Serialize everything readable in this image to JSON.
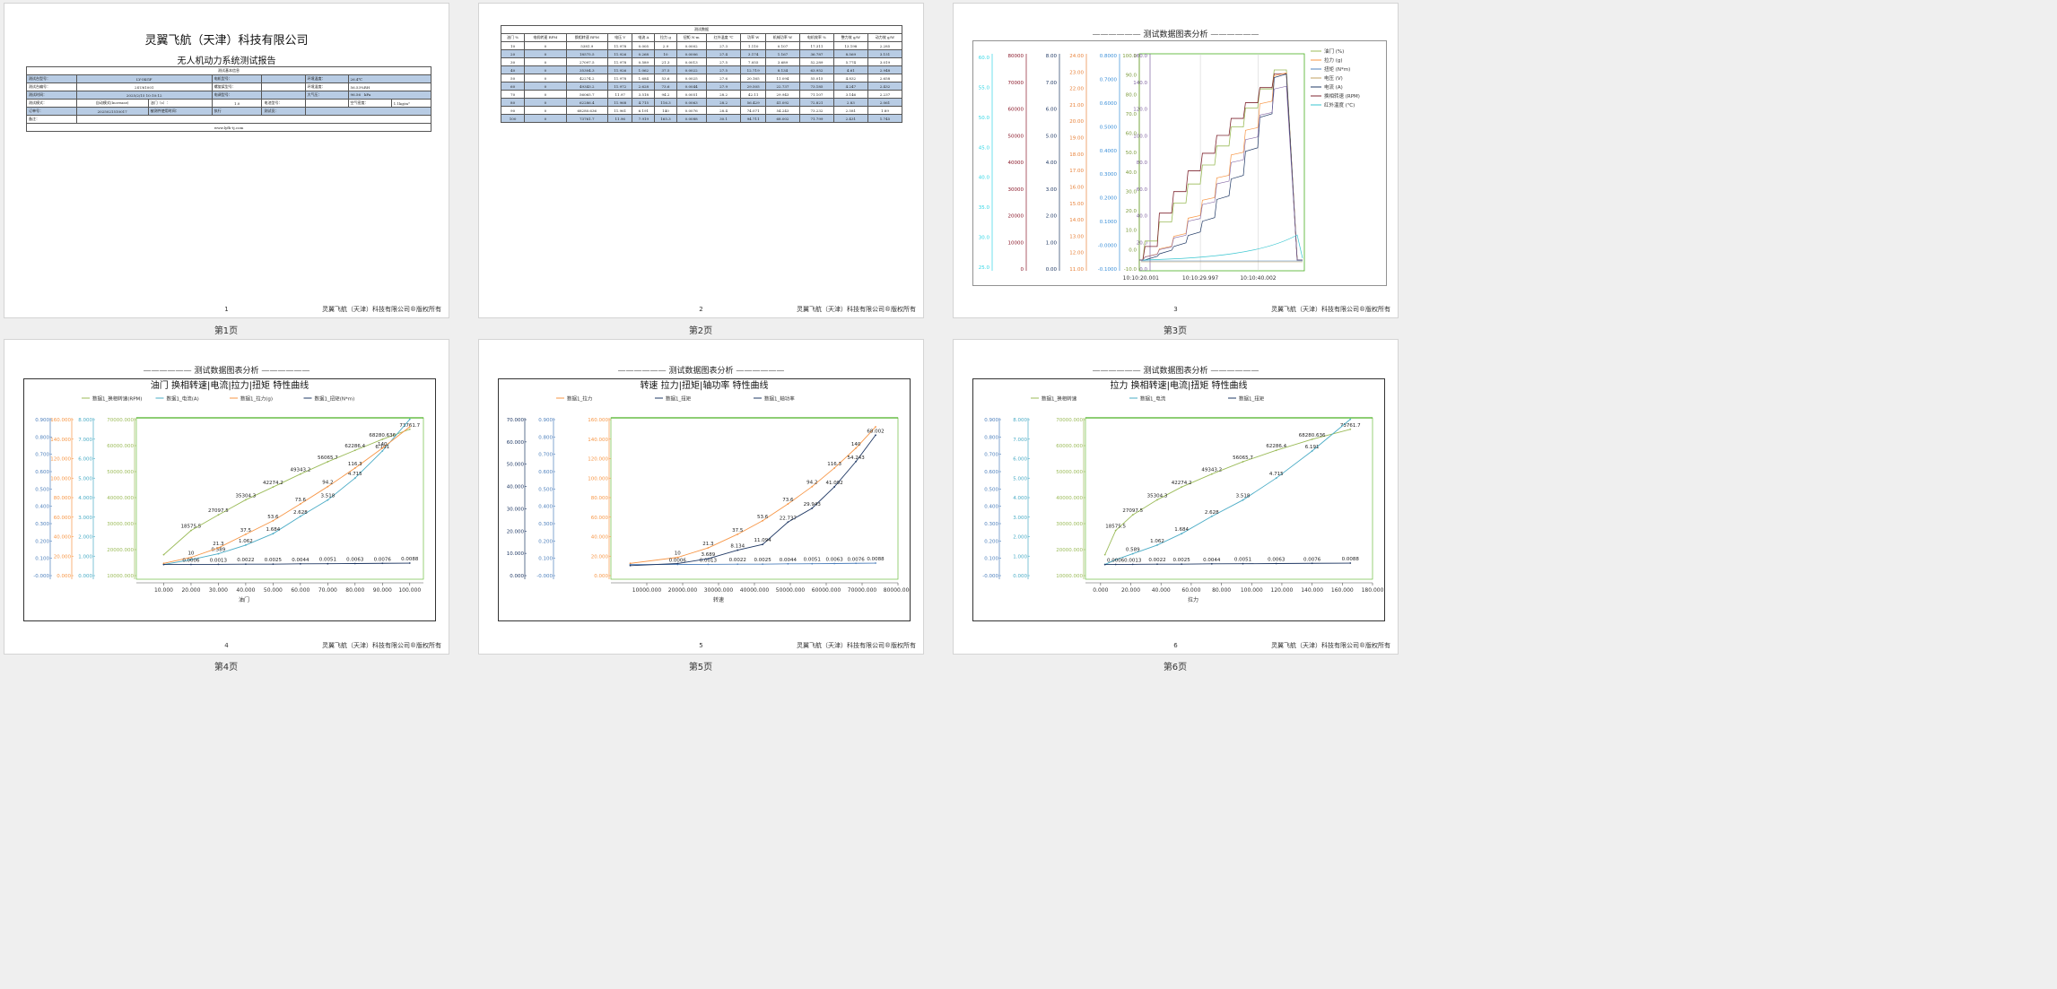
{
  "footer_text": "灵翼飞航（天津）科技有限公司®版权所有",
  "page_labels": [
    "第1页",
    "第2页",
    "第3页",
    "第4页",
    "第5页",
    "第6页"
  ],
  "page_numbers": [
    "1",
    "2",
    "3",
    "4",
    "5",
    "6"
  ],
  "report": {
    "company": "灵翼飞航（天津）科技有限公司",
    "title": "无人机动力系统测试报告",
    "section": "测试基本信息",
    "rows": [
      [
        "测试台型号：",
        "LY-5KGF",
        "电机型号：",
        "",
        "环境温度：",
        "26.4℃"
      ],
      [
        "测试台编号：",
        "2SU61001",
        "螺旋桨型号：",
        "",
        "环境湿度：",
        "56.53%RH"
      ],
      [
        "测试时间：",
        "2025/2/15 10:10:12",
        "电调型号：",
        "",
        "大气压：",
        "96.56　kPa"
      ],
      [
        "测试模式：",
        "自动模式(Increase)",
        "油门（s）：",
        "1.0",
        "电池型号：",
        "",
        "空气密度：",
        "1.1kg/m³"
      ],
      [
        "订单号：",
        "2025021510017",
        "被测件使用时间：",
        "执行",
        "测试员：",
        ""
      ],
      [
        "备注：",
        ""
      ]
    ],
    "website": "www.lyfh-tj.com"
  },
  "table": {
    "section": "测试数据",
    "headers": [
      "油门 %",
      "电机转速 RPM",
      "换相转速 RPM",
      "电压 V",
      "电流 A",
      "拉力 g",
      "扭矩 N·m",
      "红外温度 ℃",
      "功率 W",
      "机械功率 W",
      "电机效率 %",
      "整力效 g/W",
      "动力效 g/W"
    ],
    "rows": [
      [
        "10",
        "0",
        "5381.9",
        "11.978",
        "0.005",
        "2.9",
        "0.0002",
        "27.3",
        "1.110",
        "0.107",
        "17.311",
        "13.198",
        "2.285"
      ],
      [
        "20",
        "0",
        "18575.5",
        "11.926",
        "0.268",
        "10",
        "0.0006",
        "27.4",
        "3.174",
        "1.167",
        "36.787",
        "8.569",
        "3.151"
      ],
      [
        "30",
        "0",
        "27097.5",
        "11.978",
        "0.589",
        "21.3",
        "0.0013",
        "27.5",
        "7.055",
        "3.689",
        "52.289",
        "5.774",
        "3.019"
      ],
      [
        "40",
        "0",
        "35304.3",
        "11.926",
        "1.062",
        "37.5",
        "0.0022",
        "27.5",
        "12.719",
        "8.134",
        "63.952",
        "4.61",
        "2.948"
      ],
      [
        "50",
        "0",
        "42274.2",
        "11.978",
        "1.684",
        "53.6",
        "0.0025",
        "27.6",
        "20.165",
        "11.094",
        "55.015",
        "4.832",
        "2.658"
      ],
      [
        "60",
        "0",
        "49343.2",
        "11.972",
        "2.628",
        "73.6",
        "0.0044",
        "27.9",
        "29.505",
        "22.737",
        "73.185",
        "4.247",
        "2.432"
      ],
      [
        "70",
        "0",
        "56065.7",
        "11.97",
        "3.518",
        "94.2",
        "0.0051",
        "28.2",
        "42.11",
        "29.943",
        "71.107",
        "3.146",
        "2.237"
      ],
      [
        "80",
        "0",
        "62286.4",
        "11.968",
        "4.715",
        "116.3",
        "0.0063",
        "28.2",
        "56.429",
        "41.092",
        "72.821",
        "2.83",
        "2.061"
      ],
      [
        "90",
        "0",
        "68280.636",
        "11.961",
        "6.191",
        "140",
        "0.0076",
        "28.4",
        "74.071",
        "54.243",
        "73.232",
        "2.581",
        "1.89"
      ],
      [
        "100",
        "0",
        "73761.7",
        "11.96",
        "7.919",
        "165.3",
        "0.0088",
        "30.1",
        "94.711",
        "68.002",
        "71.799",
        "2.431",
        "1.745"
      ]
    ]
  },
  "chart3": {
    "title": "测试数据图表分析",
    "legend": [
      {
        "name": "油门 (%)",
        "color": "#9bbb59"
      },
      {
        "name": "拉力 (g)",
        "color": "#f79646"
      },
      {
        "name": "扭矩 (N*m)",
        "color": "#4f81bd"
      },
      {
        "name": "电压 (V)",
        "color": "#c0a060"
      },
      {
        "name": "电流 (A)",
        "color": "#1f3864"
      },
      {
        "name": "换相转速 (RPM)",
        "color": "#7f2630"
      },
      {
        "name": "红外温度 (℃)",
        "color": "#39c6d0"
      }
    ],
    "x_ticks": [
      "10:10:20.001",
      "10:10:29.997",
      "10:10:40.002"
    ],
    "axes": [
      {
        "color": "#33d6e6",
        "ticks": [
          "60.0",
          "55.0",
          "50.0",
          "45.0",
          "40.0",
          "35.0",
          "30.0",
          "25.0"
        ]
      },
      {
        "color": "#8b1a2b",
        "ticks": [
          "80000",
          "70000",
          "60000",
          "50000",
          "40000",
          "30000",
          "20000",
          "10000",
          "0"
        ]
      },
      {
        "color": "#1f3864",
        "ticks": [
          "8.00",
          "7.00",
          "6.00",
          "5.00",
          "4.00",
          "3.00",
          "2.00",
          "1.00",
          "0.00"
        ]
      },
      {
        "color": "#e8823a",
        "ticks": [
          "24.00",
          "23.00",
          "22.00",
          "21.00",
          "20.00",
          "19.00",
          "18.00",
          "17.00",
          "16.00",
          "15.00",
          "14.00",
          "13.00",
          "12.00",
          "11.00"
        ]
      },
      {
        "color": "#3b8fd8",
        "ticks": [
          "0.8000",
          "0.7000",
          "0.6000",
          "0.5000",
          "0.4000",
          "0.3000",
          "0.2000",
          "0.1000",
          "-0.0000",
          "-0.1000"
        ]
      },
      {
        "color": "#8064a2",
        "ticks": [
          "160.0",
          "140.0",
          "120.0",
          "100.0",
          "80.0",
          "60.0",
          "40.0",
          "20.0",
          "0.0"
        ]
      },
      {
        "color": "#7a9a3a",
        "ticks": [
          "100.0",
          "90.0",
          "80.0",
          "70.0",
          "60.0",
          "50.0",
          "40.0",
          "30.0",
          "20.0",
          "10.0",
          "0.0",
          "-10.0"
        ]
      }
    ]
  },
  "chart4": {
    "header": "测试数据图表分析",
    "title": "油门 换相转速|电流|拉力|扭矩 特性曲线",
    "legend": [
      {
        "name": "数据1_换相转速(RPM)",
        "color": "#9bbb59"
      },
      {
        "name": "数据1_电流(A)",
        "color": "#4bacc6"
      },
      {
        "name": "数据1_拉力(g)",
        "color": "#f79646"
      },
      {
        "name": "数据1_扭矩(N*m)",
        "color": "#1f3864"
      }
    ],
    "xlabel": "油门",
    "x_ticks": [
      "10.000",
      "20.000",
      "30.000",
      "40.000",
      "50.000",
      "60.000",
      "70.000",
      "80.000",
      "90.000",
      "100.000"
    ],
    "axes": [
      {
        "color": "#4f81bd",
        "ticks": [
          "0.900",
          "0.800",
          "0.700",
          "0.600",
          "0.500",
          "0.400",
          "0.300",
          "0.200",
          "0.100",
          "-0.000"
        ]
      },
      {
        "color": "#f79646",
        "ticks": [
          "160.000",
          "140.000",
          "120.000",
          "100.000",
          "80.000",
          "60.000",
          "40.000",
          "20.000",
          "0.000"
        ]
      },
      {
        "color": "#4bacc6",
        "ticks": [
          "8.000",
          "7.000",
          "6.000",
          "5.000",
          "4.000",
          "3.000",
          "2.000",
          "1.000",
          "0.000"
        ]
      },
      {
        "color": "#9bbb59",
        "ticks": [
          "70000.000",
          "60000.000",
          "50000.000",
          "40000.000",
          "30000.000",
          "20000.000",
          "10000.000"
        ]
      }
    ]
  },
  "chart5": {
    "header": "测试数据图表分析",
    "title": "转速 拉力|扭矩|轴功率 特性曲线",
    "legend": [
      {
        "name": "数据1_拉力",
        "color": "#f79646"
      },
      {
        "name": "数据1_扭矩",
        "color": "#1f3864"
      },
      {
        "name": "数据1_轴功率",
        "color": "#1f3864"
      }
    ],
    "xlabel": "转速",
    "x_ticks": [
      "10000.000",
      "20000.000",
      "30000.000",
      "40000.000",
      "50000.000",
      "60000.000",
      "70000.000",
      "80000.000"
    ],
    "axes": [
      {
        "color": "#1f3864",
        "ticks": [
          "70.000",
          "60.000",
          "50.000",
          "40.000",
          "30.000",
          "20.000",
          "10.000",
          "0.000"
        ]
      },
      {
        "color": "#4f81bd",
        "ticks": [
          "0.900",
          "0.800",
          "0.700",
          "0.600",
          "0.500",
          "0.400",
          "0.300",
          "0.200",
          "0.100",
          "-0.000"
        ]
      },
      {
        "color": "#f79646",
        "ticks": [
          "160.000",
          "140.000",
          "120.000",
          "100.000",
          "80.000",
          "60.000",
          "40.000",
          "20.000",
          "0.000"
        ]
      }
    ]
  },
  "chart6": {
    "header": "测试数据图表分析",
    "title": "拉力 换相转速|电流|扭矩 特性曲线",
    "legend": [
      {
        "name": "数据1_换相转速",
        "color": "#9bbb59"
      },
      {
        "name": "数据1_电流",
        "color": "#4bacc6"
      },
      {
        "name": "数据1_扭矩",
        "color": "#1f3864"
      }
    ],
    "xlabel": "拉力",
    "x_ticks": [
      "0.000",
      "20.000",
      "40.000",
      "60.000",
      "80.000",
      "100.000",
      "120.000",
      "140.000",
      "160.000",
      "180.000"
    ],
    "axes": [
      {
        "color": "#4f81bd",
        "ticks": [
          "0.900",
          "0.800",
          "0.700",
          "0.600",
          "0.500",
          "0.400",
          "0.300",
          "0.200",
          "0.100",
          "-0.000"
        ]
      },
      {
        "color": "#4bacc6",
        "ticks": [
          "8.000",
          "7.000",
          "6.000",
          "5.000",
          "4.000",
          "3.000",
          "2.000",
          "1.000",
          "0.000"
        ]
      },
      {
        "color": "#9bbb59",
        "ticks": [
          "70000.000",
          "60000.000",
          "50000.000",
          "40000.000",
          "30000.000",
          "20000.000",
          "10000.000"
        ]
      }
    ]
  },
  "chart_data": [
    {
      "type": "line",
      "title": "油门 换相转速|电流|拉力|扭矩 特性曲线",
      "xlabel": "油门",
      "xlim": [
        0,
        105
      ],
      "x": [
        10,
        20,
        30,
        40,
        50,
        60,
        70,
        80,
        90,
        100
      ],
      "series": [
        {
          "name": "数据1_换相转速(RPM)",
          "color": "#9bbb59",
          "ylim": [
            -8000,
            80000
          ],
          "values": [
            5381.9,
            18575.5,
            27097.5,
            35304.3,
            42274.2,
            49343.2,
            56065.7,
            62286.4,
            68280.636,
            73761.7
          ],
          "labels": [
            "",
            "18575.5",
            "27097.5",
            "35304.3",
            "42274.2",
            "49343.2",
            "56065.7",
            "62286.4",
            "68280.636",
            "73761.7"
          ]
        },
        {
          "name": "数据1_电流(A)",
          "color": "#4bacc6",
          "ylim": [
            -0.8,
            8.0
          ],
          "values": [
            0.005,
            0.268,
            0.589,
            1.062,
            1.684,
            2.628,
            3.518,
            4.715,
            6.191,
            7.919
          ],
          "labels": [
            "",
            "",
            "0.589",
            "1.062",
            "1.684",
            "2.628",
            "3.518",
            "4.715",
            "6.191",
            ""
          ]
        },
        {
          "name": "数据1_拉力(g)",
          "color": "#f79646",
          "ylim": [
            -16,
            176
          ],
          "values": [
            2.9,
            10,
            21.3,
            37.5,
            53.6,
            73.6,
            94.2,
            116.3,
            140,
            165.3
          ],
          "labels": [
            "",
            "10",
            "21.3",
            "37.5",
            "53.6",
            "73.6",
            "94.2",
            "116.3",
            "140",
            ""
          ]
        },
        {
          "name": "数据1_扭矩(N*m)",
          "color": "#1f3864",
          "ylim": [
            -0.09,
            0.9
          ],
          "values": [
            0.0002,
            0.0006,
            0.0013,
            0.0022,
            0.0025,
            0.0044,
            0.0051,
            0.0063,
            0.0076,
            0.0088
          ],
          "labels": [
            "",
            "0.0006",
            "0.0013",
            "0.0022",
            "0.0025",
            "0.0044",
            "0.0051",
            "0.0063",
            "0.0076",
            "0.0088"
          ]
        }
      ]
    },
    {
      "type": "line",
      "title": "转速 拉力|扭矩|轴功率 特性曲线",
      "xlabel": "转速",
      "xlim": [
        0,
        80000
      ],
      "x": [
        5381.9,
        18575.5,
        27097.5,
        35304.3,
        42274.2,
        49343.2,
        56065.7,
        62286.4,
        68280.636,
        73761.7
      ],
      "series": [
        {
          "name": "数据1_拉力",
          "color": "#f79646",
          "ylim": [
            -16,
            176
          ],
          "values": [
            2.9,
            10,
            21.3,
            37.5,
            53.6,
            73.6,
            94.2,
            116.3,
            140,
            165.3
          ],
          "labels": [
            "",
            "10",
            "21.3",
            "37.5",
            "53.6",
            "73.6",
            "94.2",
            "116.3",
            "140",
            ""
          ]
        },
        {
          "name": "数据1_扭矩",
          "color": "#4f81bd",
          "ylim": [
            -0.09,
            0.9
          ],
          "values": [
            0.0002,
            0.0006,
            0.0013,
            0.0022,
            0.0025,
            0.0044,
            0.0051,
            0.0063,
            0.0076,
            0.0088
          ],
          "labels": [
            "",
            "0.0006",
            "0.0013",
            "0.0022",
            "0.0025",
            "0.0044",
            "0.0051",
            "0.0063",
            "0.0076",
            "0.0088"
          ]
        },
        {
          "name": "数据1_轴功率",
          "color": "#1f3864",
          "ylim": [
            -7,
            77
          ],
          "values": [
            0.107,
            1.167,
            3.689,
            8.134,
            11.094,
            22.737,
            29.943,
            41.092,
            54.243,
            68.002
          ],
          "labels": [
            "",
            "",
            "3.689",
            "8.134",
            "11.094",
            "22.737",
            "29.943",
            "41.092",
            "54.243",
            "68.002"
          ]
        }
      ]
    },
    {
      "type": "line",
      "title": "拉力 换相转速|电流|扭矩 特性曲线",
      "xlabel": "拉力",
      "xlim": [
        -10,
        180
      ],
      "x": [
        2.9,
        10,
        21.3,
        37.5,
        53.6,
        73.6,
        94.2,
        116.3,
        140,
        165.3
      ],
      "series": [
        {
          "name": "数据1_换相转速",
          "color": "#9bbb59",
          "ylim": [
            -8000,
            80000
          ],
          "values": [
            5381.9,
            18575.5,
            27097.5,
            35304.3,
            42274.2,
            49343.2,
            56065.7,
            62286.4,
            68280.636,
            73761.7
          ],
          "labels": [
            "",
            "18575.5",
            "27097.5",
            "35304.3",
            "42274.2",
            "49343.2",
            "56065.7",
            "62286.4",
            "68280.636",
            "73761.7"
          ]
        },
        {
          "name": "数据1_电流",
          "color": "#4bacc6",
          "ylim": [
            -0.8,
            8.0
          ],
          "values": [
            0.005,
            0.268,
            0.589,
            1.062,
            1.684,
            2.628,
            3.518,
            4.715,
            6.191,
            7.919
          ],
          "labels": [
            "",
            "",
            "0.589",
            "1.062",
            "1.684",
            "2.628",
            "3.518",
            "4.715",
            "6.191",
            ""
          ]
        },
        {
          "name": "数据1_扭矩",
          "color": "#1f3864",
          "ylim": [
            -0.09,
            0.9
          ],
          "values": [
            0.0002,
            0.0006,
            0.0013,
            0.0022,
            0.0025,
            0.0044,
            0.0051,
            0.0063,
            0.0076,
            0.0088
          ],
          "labels": [
            "",
            "0.0006",
            "0.0013",
            "0.0022",
            "0.0025",
            "0.0044",
            "0.0051",
            "0.0063",
            "0.0076",
            "0.0088"
          ]
        }
      ]
    }
  ]
}
